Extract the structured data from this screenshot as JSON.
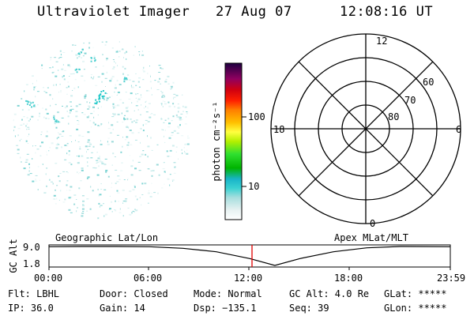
{
  "header": {
    "instrument": "Ultraviolet Imager",
    "date": "27 Aug 07",
    "time": "12:08:16 UT"
  },
  "colorbar": {
    "label": "photon cm⁻²s⁻¹",
    "ticks": [
      "100",
      "10"
    ],
    "scale": "log"
  },
  "polar_plot": {
    "time_labels": [
      "12",
      "18",
      "6",
      "0"
    ],
    "lat_labels": [
      "60",
      "70",
      "80"
    ]
  },
  "timeline": {
    "ylabel": "GC Alt",
    "yticks": [
      "9.0",
      "1.8"
    ],
    "left_title": "Geographic Lat/Lon",
    "right_title": "Apex MLat/MLT",
    "xticks": [
      "00:00",
      "06:00",
      "12:00",
      "18:00",
      "23:59"
    ],
    "current_marker_time": "12:08",
    "colors": {
      "marker": "#e00000",
      "curve": "#000000"
    }
  },
  "chart_data": {
    "type": "line",
    "title": "Ultraviolet Imager",
    "xlabel": "",
    "ylabel": "GC Alt",
    "x": [
      "00:00",
      "02:00",
      "04:00",
      "06:00",
      "08:00",
      "10:00",
      "12:00",
      "13:30",
      "15:00",
      "17:00",
      "19:00",
      "21:00",
      "23:59"
    ],
    "series": [
      {
        "values": [
          8.9,
          9.0,
          9.0,
          8.9,
          8.3,
          7.0,
          4.4,
          1.8,
          4.4,
          7.0,
          8.5,
          9.0,
          8.9
        ]
      }
    ],
    "ylim": [
      1.8,
      9.0
    ],
    "grid": false
  },
  "status": {
    "flt_label": "Flt: LBHL",
    "ip_label": "IP: 36.0",
    "door_label": "Door: Closed",
    "gain_label": "Gain: 14",
    "mode_label": "Mode: Normal",
    "dsp_label": "Dsp: −135.1",
    "gcalt_label": "GC Alt: 4.0 Re",
    "seq_label": "Seq: 39",
    "glat_label": "GLat: *****",
    "glon_label": "GLon: *****"
  }
}
